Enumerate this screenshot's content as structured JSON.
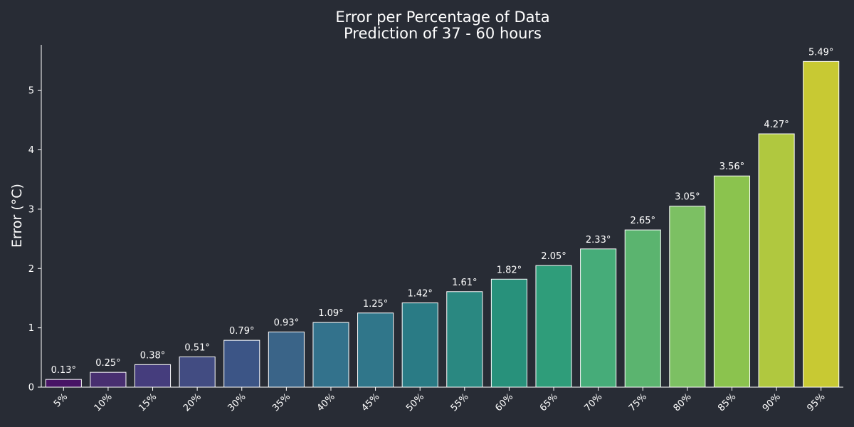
{
  "chart_data": {
    "type": "bar",
    "title": "Error per Percentage of Data",
    "subtitle": "Prediction of 37 - 60 hours",
    "xlabel": "",
    "ylabel": "Error (°C)",
    "ylim": [
      0,
      5.77
    ],
    "yticks": [
      "0",
      "1",
      "2",
      "3",
      "4",
      "5"
    ],
    "grid": false,
    "categories": [
      "5%",
      "10%",
      "15%",
      "20%",
      "30%",
      "35%",
      "40%",
      "45%",
      "50%",
      "55%",
      "60%",
      "65%",
      "70%",
      "75%",
      "80%",
      "85%",
      "90%",
      "95%"
    ],
    "values": [
      0.13,
      0.25,
      0.38,
      0.51,
      0.79,
      0.93,
      1.09,
      1.25,
      1.42,
      1.61,
      1.82,
      2.05,
      2.33,
      2.65,
      3.05,
      3.56,
      4.27,
      5.49
    ],
    "data_labels": [
      "0.13°",
      "0.25°",
      "0.38°",
      "0.51°",
      "0.79°",
      "0.93°",
      "1.09°",
      "1.25°",
      "1.42°",
      "1.61°",
      "1.82°",
      "2.05°",
      "2.33°",
      "2.65°",
      "3.05°",
      "3.56°",
      "4.27°",
      "5.49°"
    ],
    "colors": [
      "#471365",
      "#482f70",
      "#453d7d",
      "#424c82",
      "#3c5586",
      "#3a6488",
      "#33728c",
      "#30768a",
      "#2a7b85",
      "#2a8881",
      "#28917b",
      "#2f9d7a",
      "#46ac79",
      "#5bb46f",
      "#7cc063",
      "#8bc34e",
      "#b0c83f",
      "#c8c933"
    ],
    "bar_edge_color": "#ffffff",
    "background": "#282c35"
  }
}
